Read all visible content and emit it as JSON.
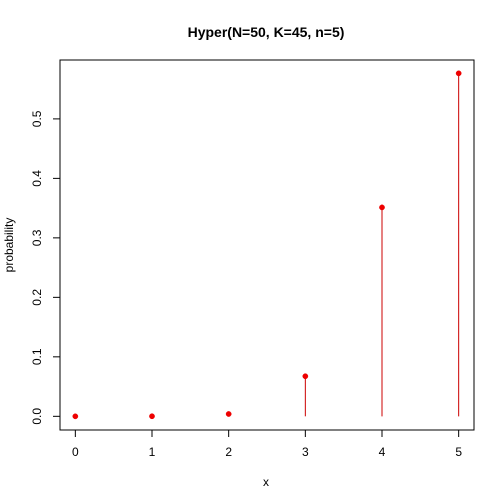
{
  "chart_data": {
    "type": "scatter",
    "title": "Hyper(N=50, K=45, n=5)",
    "xlabel": "x",
    "ylabel": "probability",
    "x": [
      0,
      1,
      2,
      3,
      4,
      5
    ],
    "values": [
      6e-07,
      0.000127,
      0.00393,
      0.0674,
      0.3512,
      0.5766
    ],
    "x_ticks": [
      "0",
      "1",
      "2",
      "3",
      "4",
      "5"
    ],
    "y_ticks": [
      "0.0",
      "0.1",
      "0.2",
      "0.3",
      "0.4",
      "0.5"
    ],
    "xlim": [
      -0.2,
      5.2
    ],
    "ylim": [
      -0.023,
      0.599
    ],
    "grid": false,
    "legend": "none",
    "colors": {
      "points": "#ee0000",
      "stems": "#cc0000",
      "axes": "#000000"
    }
  }
}
